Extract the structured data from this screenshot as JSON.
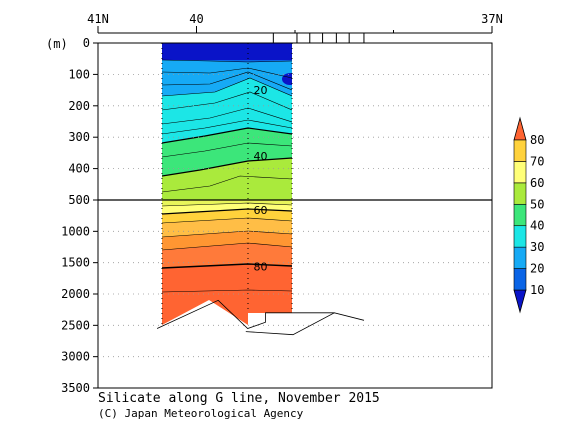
{
  "chart_data": {
    "type": "contour-section",
    "title": "Silicate along G line, November 2015",
    "credit": "(C) Japan Meteorological Agency",
    "ylabel": "(m)",
    "x_axis": {
      "label_ticks": [
        {
          "lat": 41,
          "label": "41N"
        },
        {
          "lat": 40,
          "label": "40"
        },
        {
          "lat": 37,
          "label": "37N"
        }
      ],
      "station_ticks_lat": [
        39.22,
        38.98,
        38.85,
        38.72,
        38.58,
        38.45,
        38.3
      ],
      "range_lat": [
        41,
        37
      ]
    },
    "y_axis_upper": {
      "range": [
        0,
        500
      ],
      "ticks": [
        0,
        100,
        200,
        300,
        400,
        500
      ]
    },
    "y_axis_lower": {
      "range": [
        500,
        3500
      ],
      "ticks": [
        1000,
        1500,
        2000,
        2500,
        3000,
        3500
      ]
    },
    "section_lat_range": [
      40.4,
      38.6
    ],
    "colorbar": {
      "levels": [
        10,
        20,
        30,
        40,
        50,
        60,
        70,
        80
      ],
      "colors": [
        "#0a14c8",
        "#0a64e6",
        "#16aaf5",
        "#1ce6e6",
        "#3ce67a",
        "#aaea3c",
        "#ffff78",
        "#ffd23c",
        "#ff9632",
        "#ff6432"
      ]
    },
    "contour_labels": [
      {
        "value": "20",
        "lat": 39.35,
        "depth": 150
      },
      {
        "value": "40",
        "lat": 39.35,
        "depth": 360
      },
      {
        "value": "60",
        "lat": 39.35,
        "depth": 660
      },
      {
        "value": "80",
        "lat": 39.35,
        "depth": 1560
      }
    ],
    "bottom_depth_profile": [
      {
        "lat": 40.4,
        "depth": 2550
      },
      {
        "lat": 39.78,
        "depth": 2100
      },
      {
        "lat": 39.48,
        "depth": 2550
      },
      {
        "lat": 39.3,
        "depth": 2450
      },
      {
        "lat": 39.3,
        "depth": 2300
      },
      {
        "lat": 38.6,
        "depth": 2300
      }
    ],
    "outer_bottom_profile": [
      {
        "lat": 39.5,
        "depth": 2600
      },
      {
        "lat": 39.02,
        "depth": 2650
      },
      {
        "lat": 38.6,
        "depth": 2300
      },
      {
        "lat": 38.3,
        "depth": 2420
      }
    ]
  }
}
